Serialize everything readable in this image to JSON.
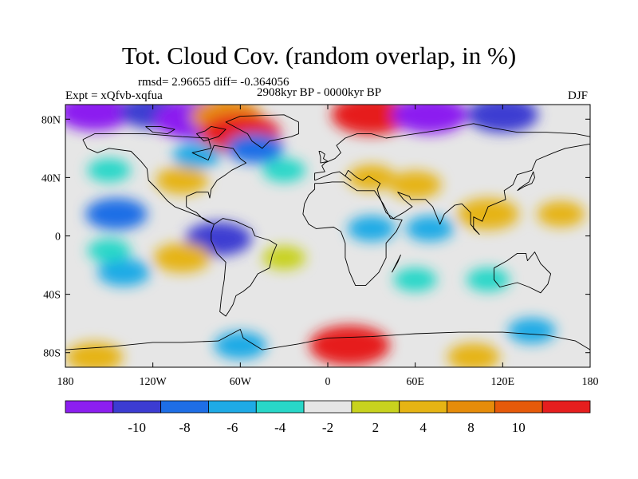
{
  "chart_data": {
    "type": "heatmap",
    "title": "Tot. Cloud Cov. (random overlap, in %)",
    "stats_label": "rmsd= 2.96655 diff= -0.364056",
    "period_label": "2908kyr BP - 0000kyr BP",
    "experiment_label": "Expt = xQfvb-xqfua",
    "season_label": "DJF",
    "x_range": [
      -180,
      180
    ],
    "y_range": [
      -90,
      90
    ],
    "x_ticks": [
      {
        "value": -180,
        "label": "180"
      },
      {
        "value": -120,
        "label": "120W"
      },
      {
        "value": -60,
        "label": "60W"
      },
      {
        "value": 0,
        "label": "0"
      },
      {
        "value": 60,
        "label": "60E"
      },
      {
        "value": 120,
        "label": "120E"
      },
      {
        "value": 180,
        "label": "180"
      }
    ],
    "y_ticks": [
      {
        "value": 80,
        "label": "80N"
      },
      {
        "value": 40,
        "label": "40N"
      },
      {
        "value": 0,
        "label": "0"
      },
      {
        "value": -40,
        "label": "40S"
      },
      {
        "value": -80,
        "label": "80S"
      }
    ],
    "colorbar": {
      "colors": [
        "#8c1ef0",
        "#3c3cd2",
        "#1e6ee6",
        "#1eaae6",
        "#28d7c8",
        "#e6e6e6",
        "#c8d21e",
        "#e6b414",
        "#e68c0a",
        "#e65a0a",
        "#e61e1e"
      ],
      "tick_labels": [
        "-10",
        "-8",
        "-6",
        "-4",
        "-2",
        "2",
        "4",
        "8",
        "10"
      ]
    },
    "field_features": [
      {
        "lon": -160,
        "lat": 85,
        "value": -10
      },
      {
        "lon": -120,
        "lat": 85,
        "value": -8
      },
      {
        "lon": -90,
        "lat": 80,
        "value": -12
      },
      {
        "lon": -70,
        "lat": 82,
        "value": 9
      },
      {
        "lon": -60,
        "lat": 70,
        "value": 11
      },
      {
        "lon": -50,
        "lat": 60,
        "value": -6
      },
      {
        "lon": 30,
        "lat": 83,
        "value": 11
      },
      {
        "lon": 70,
        "lat": 83,
        "value": -10
      },
      {
        "lon": 120,
        "lat": 83,
        "value": -9
      },
      {
        "lon": -150,
        "lat": 45,
        "value": -3
      },
      {
        "lon": -90,
        "lat": 55,
        "value": -4
      },
      {
        "lon": -30,
        "lat": 45,
        "value": -3
      },
      {
        "lon": 30,
        "lat": 40,
        "value": 4
      },
      {
        "lon": 60,
        "lat": 35,
        "value": 5
      },
      {
        "lon": -100,
        "lat": 38,
        "value": 5
      },
      {
        "lon": 110,
        "lat": 15,
        "value": 7
      },
      {
        "lon": 160,
        "lat": 15,
        "value": 4
      },
      {
        "lon": 70,
        "lat": 5,
        "value": -4
      },
      {
        "lon": -145,
        "lat": 15,
        "value": -7
      },
      {
        "lon": -75,
        "lat": -2,
        "value": -8
      },
      {
        "lon": -100,
        "lat": -15,
        "value": 6
      },
      {
        "lon": -140,
        "lat": -25,
        "value": -5
      },
      {
        "lon": -150,
        "lat": -10,
        "value": -3
      },
      {
        "lon": 30,
        "lat": 5,
        "value": -4
      },
      {
        "lon": 60,
        "lat": -30,
        "value": -3
      },
      {
        "lon": 110,
        "lat": -30,
        "value": -3
      },
      {
        "lon": -30,
        "lat": -15,
        "value": 3
      },
      {
        "lon": 15,
        "lat": -75,
        "value": 11
      },
      {
        "lon": -160,
        "lat": -83,
        "value": 6
      },
      {
        "lon": 100,
        "lat": -83,
        "value": 5
      },
      {
        "lon": -60,
        "lat": -75,
        "value": -5
      },
      {
        "lon": 140,
        "lat": -65,
        "value": -4
      }
    ],
    "land_outlines": [
      [
        [
          -168,
          66
        ],
        [
          -160,
          70
        ],
        [
          -140,
          70
        ],
        [
          -125,
          70
        ],
        [
          -100,
          68
        ],
        [
          -82,
          67
        ],
        [
          -80,
          60
        ],
        [
          -93,
          57
        ],
        [
          -82,
          52
        ],
        [
          -78,
          62
        ],
        [
          -65,
          60
        ],
        [
          -60,
          53
        ],
        [
          -56,
          50
        ],
        [
          -66,
          45
        ],
        [
          -70,
          42
        ],
        [
          -76,
          38
        ],
        [
          -80,
          32
        ],
        [
          -81,
          26
        ],
        [
          -82,
          30
        ],
        [
          -90,
          30
        ],
        [
          -97,
          27
        ],
        [
          -97,
          20
        ],
        [
          -94,
          18
        ],
        [
          -90,
          16
        ],
        [
          -86,
          12
        ],
        [
          -83,
          10
        ],
        [
          -80,
          9
        ],
        [
          -78,
          8
        ],
        [
          -85,
          12
        ],
        [
          -92,
          15
        ],
        [
          -105,
          20
        ],
        [
          -110,
          24
        ],
        [
          -117,
          32
        ],
        [
          -123,
          38
        ],
        [
          -124,
          46
        ],
        [
          -128,
          51
        ],
        [
          -135,
          58
        ],
        [
          -150,
          60
        ],
        [
          -158,
          57
        ],
        [
          -165,
          60
        ],
        [
          -168,
          66
        ]
      ],
      [
        [
          -78,
          8
        ],
        [
          -72,
          12
        ],
        [
          -63,
          10
        ],
        [
          -52,
          5
        ],
        [
          -50,
          0
        ],
        [
          -40,
          -3
        ],
        [
          -35,
          -6
        ],
        [
          -38,
          -13
        ],
        [
          -40,
          -22
        ],
        [
          -48,
          -26
        ],
        [
          -53,
          -34
        ],
        [
          -58,
          -38
        ],
        [
          -63,
          -41
        ],
        [
          -65,
          -47
        ],
        [
          -68,
          -52
        ],
        [
          -70,
          -55
        ],
        [
          -74,
          -52
        ],
        [
          -73,
          -42
        ],
        [
          -71,
          -30
        ],
        [
          -70,
          -18
        ],
        [
          -76,
          -12
        ],
        [
          -80,
          -3
        ],
        [
          -80,
          2
        ],
        [
          -78,
          8
        ]
      ],
      [
        [
          -9,
          36
        ],
        [
          -5,
          36
        ],
        [
          3,
          37
        ],
        [
          11,
          37
        ],
        [
          20,
          31
        ],
        [
          32,
          31
        ],
        [
          34,
          28
        ],
        [
          38,
          22
        ],
        [
          43,
          12
        ],
        [
          51,
          11
        ],
        [
          47,
          3
        ],
        [
          40,
          -5
        ],
        [
          40,
          -15
        ],
        [
          35,
          -25
        ],
        [
          26,
          -34
        ],
        [
          19,
          -34
        ],
        [
          15,
          -25
        ],
        [
          12,
          -15
        ],
        [
          12,
          -5
        ],
        [
          9,
          3
        ],
        [
          4,
          6
        ],
        [
          -8,
          5
        ],
        [
          -13,
          8
        ],
        [
          -17,
          15
        ],
        [
          -16,
          22
        ],
        [
          -13,
          28
        ],
        [
          -9,
          32
        ],
        [
          -9,
          36
        ]
      ],
      [
        [
          -9,
          38
        ],
        [
          -9,
          43
        ],
        [
          -2,
          44
        ],
        [
          -4,
          48
        ],
        [
          -2,
          50
        ],
        [
          5,
          53
        ],
        [
          9,
          57
        ],
        [
          6,
          62
        ],
        [
          12,
          67
        ],
        [
          20,
          70
        ],
        [
          30,
          70
        ],
        [
          40,
          67
        ],
        [
          60,
          70
        ],
        [
          80,
          73
        ],
        [
          100,
          77
        ],
        [
          113,
          74
        ],
        [
          130,
          71
        ],
        [
          150,
          71
        ],
        [
          170,
          70
        ],
        [
          180,
          68
        ],
        [
          180,
          63
        ],
        [
          163,
          60
        ],
        [
          155,
          57
        ],
        [
          143,
          52
        ],
        [
          140,
          45
        ],
        [
          130,
          42
        ],
        [
          127,
          35
        ],
        [
          121,
          31
        ],
        [
          122,
          25
        ],
        [
          110,
          20
        ],
        [
          106,
          10
        ],
        [
          100,
          13
        ],
        [
          100,
          5
        ],
        [
          104,
          1
        ],
        [
          98,
          8
        ],
        [
          98,
          16
        ],
        [
          92,
          22
        ],
        [
          87,
          21
        ],
        [
          80,
          15
        ],
        [
          77,
          8
        ],
        [
          72,
          20
        ],
        [
          67,
          25
        ],
        [
          57,
          25
        ],
        [
          56,
          27
        ],
        [
          48,
          30
        ],
        [
          52,
          25
        ],
        [
          58,
          20
        ],
        [
          52,
          16
        ],
        [
          45,
          12
        ],
        [
          40,
          16
        ],
        [
          35,
          28
        ],
        [
          34,
          32
        ],
        [
          36,
          36
        ],
        [
          28,
          41
        ],
        [
          24,
          38
        ],
        [
          20,
          40
        ],
        [
          14,
          45
        ],
        [
          12,
          41
        ],
        [
          16,
          38
        ],
        [
          8,
          44
        ],
        [
          3,
          43
        ],
        [
          -9,
          38
        ]
      ],
      [
        [
          114,
          -22
        ],
        [
          123,
          -17
        ],
        [
          130,
          -12
        ],
        [
          136,
          -12
        ],
        [
          137,
          -17
        ],
        [
          142,
          -11
        ],
        [
          146,
          -19
        ],
        [
          153,
          -26
        ],
        [
          151,
          -33
        ],
        [
          146,
          -39
        ],
        [
          138,
          -35
        ],
        [
          130,
          -32
        ],
        [
          118,
          -35
        ],
        [
          114,
          -30
        ],
        [
          114,
          -22
        ]
      ],
      [
        [
          -180,
          -78
        ],
        [
          -150,
          -76
        ],
        [
          -120,
          -73
        ],
        [
          -100,
          -73
        ],
        [
          -75,
          -72
        ],
        [
          -60,
          -64
        ],
        [
          -58,
          -70
        ],
        [
          -45,
          -78
        ],
        [
          -20,
          -74
        ],
        [
          0,
          -70
        ],
        [
          30,
          -69
        ],
        [
          60,
          -67
        ],
        [
          90,
          -66
        ],
        [
          120,
          -66
        ],
        [
          150,
          -68
        ],
        [
          170,
          -72
        ],
        [
          180,
          -78
        ]
      ],
      [
        [
          -60,
          82
        ],
        [
          -30,
          83
        ],
        [
          -20,
          78
        ],
        [
          -20,
          70
        ],
        [
          -25,
          68
        ],
        [
          -40,
          65
        ],
        [
          -45,
          60
        ],
        [
          -52,
          65
        ],
        [
          -55,
          70
        ],
        [
          -70,
          78
        ],
        [
          -60,
          82
        ]
      ],
      [
        [
          -5,
          58
        ],
        [
          -2,
          56
        ],
        [
          -3,
          53
        ],
        [
          0,
          51
        ],
        [
          -5,
          50
        ],
        [
          -5,
          54
        ],
        [
          -6,
          58
        ],
        [
          -5,
          58
        ]
      ],
      [
        [
          130,
          31
        ],
        [
          135,
          34
        ],
        [
          140,
          36
        ],
        [
          142,
          40
        ],
        [
          141,
          44
        ],
        [
          138,
          37
        ],
        [
          132,
          33
        ],
        [
          130,
          31
        ]
      ],
      [
        [
          44,
          -25
        ],
        [
          49,
          -15
        ],
        [
          50,
          -13
        ],
        [
          48,
          -18
        ],
        [
          44,
          -25
        ]
      ],
      [
        [
          -84,
          72
        ],
        [
          -90,
          70
        ],
        [
          -85,
          65
        ],
        [
          -75,
          68
        ],
        [
          -70,
          73
        ],
        [
          -80,
          75
        ],
        [
          -84,
          72
        ]
      ],
      [
        [
          -125,
          75
        ],
        [
          -115,
          75
        ],
        [
          -105,
          73
        ],
        [
          -110,
          70
        ],
        [
          -120,
          71
        ],
        [
          -125,
          75
        ]
      ]
    ]
  }
}
